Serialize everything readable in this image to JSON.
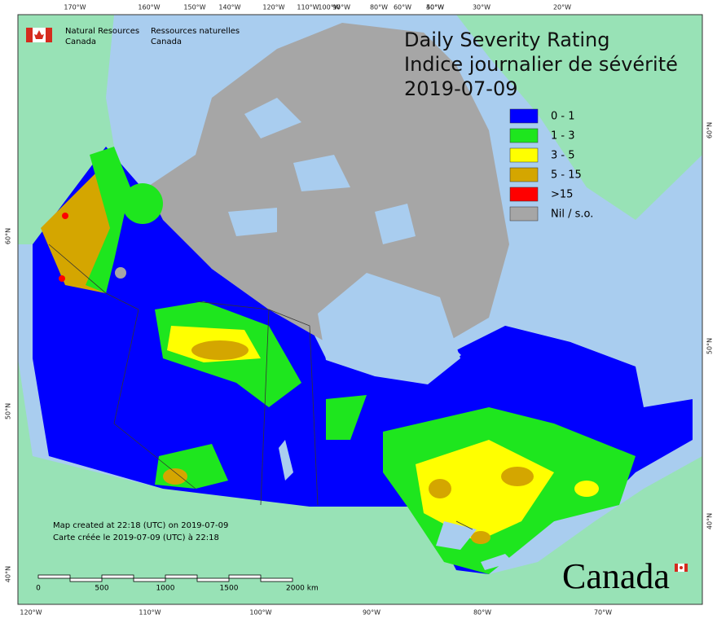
{
  "header": {
    "agency_en": [
      "Natural Resources",
      "Canada"
    ],
    "agency_fr": [
      "Ressources naturelles",
      "Canada"
    ]
  },
  "title": [
    "Daily Severity Rating",
    "Indice journalier de sévérité",
    "2019-07-09"
  ],
  "legend": [
    {
      "label": "0 - 1",
      "color": "#0000ff"
    },
    {
      "label": "1 - 3",
      "color": "#1ee61e"
    },
    {
      "label": "3 - 5",
      "color": "#ffff00"
    },
    {
      "label": "5 - 15",
      "color": "#d4a600"
    },
    {
      "label": ">15",
      "color": "#ff0000"
    },
    {
      "label": "Nil / s.o.",
      "color": "#a6a6a6"
    }
  ],
  "notes": [
    "Map created at 22:18 (UTC) on 2019-07-09",
    "Carte créée le 2019-07-09 (UTC) à 22:18"
  ],
  "scale_bar": [
    "0",
    "500",
    "1000",
    "1500",
    "2000 km"
  ],
  "graticule": {
    "top": [
      "170°W",
      "160°W",
      "150°W",
      "140°W",
      "120°W",
      "110°W",
      "100°W",
      "90°W",
      "80°W",
      "60°W",
      "50°W",
      "40°W",
      "30°W",
      "20°W"
    ],
    "bottom": [
      "120°W",
      "110°W",
      "100°W",
      "90°W",
      "80°W",
      "70°W"
    ],
    "left": [
      "60°N",
      "50°N",
      "40°N"
    ],
    "right": [
      "60°N",
      "50°N",
      "40°N"
    ]
  },
  "wordmark": "Canada"
}
